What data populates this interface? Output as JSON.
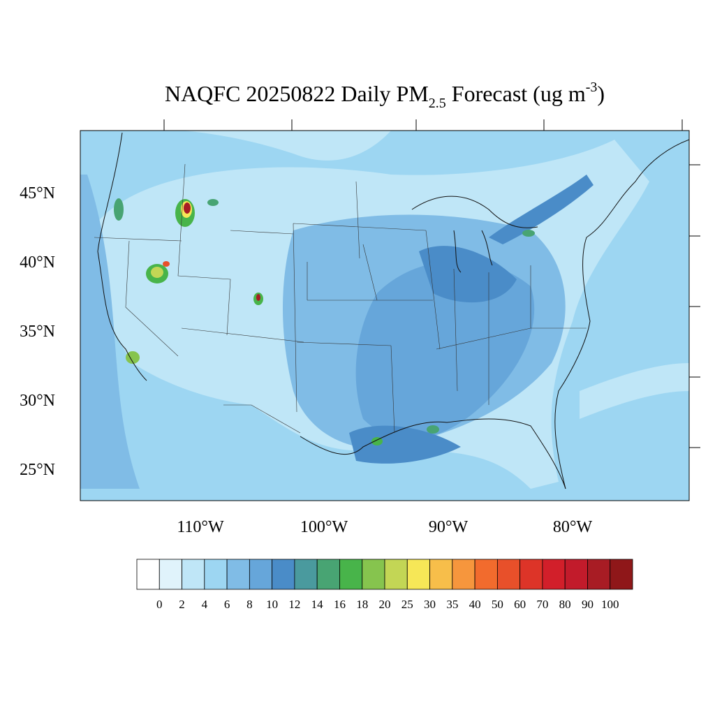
{
  "title": {
    "main": "NAQFC 20250822 Daily PM",
    "subscript": "2.5",
    "middle": " Forecast (ug m",
    "superscript": "-3",
    "end": ")"
  },
  "latitude_labels": [
    "45°N",
    "40°N",
    "35°N",
    "30°N",
    "25°N"
  ],
  "longitude_labels": [
    "110°W",
    "100°W",
    "90°W",
    "80°W"
  ],
  "colorbar": {
    "labels": [
      "0",
      "2",
      "4",
      "6",
      "8",
      "10",
      "12",
      "14",
      "16",
      "18",
      "20",
      "25",
      "30",
      "35",
      "40",
      "50",
      "60",
      "70",
      "80",
      "90",
      "100"
    ],
    "colors": [
      "#ffffff",
      "#e0f3fb",
      "#bfe6f7",
      "#9dd6f2",
      "#80bce6",
      "#66a6da",
      "#4a8cc8",
      "#4a9a9e",
      "#48a473",
      "#48b44a",
      "#86c44e",
      "#c3d655",
      "#f6e757",
      "#f7be4a",
      "#f6963d",
      "#f26b2d",
      "#e8502a",
      "#dd3428",
      "#d21f2a",
      "#c21b2b",
      "#a81c24",
      "#8f1719"
    ]
  }
}
